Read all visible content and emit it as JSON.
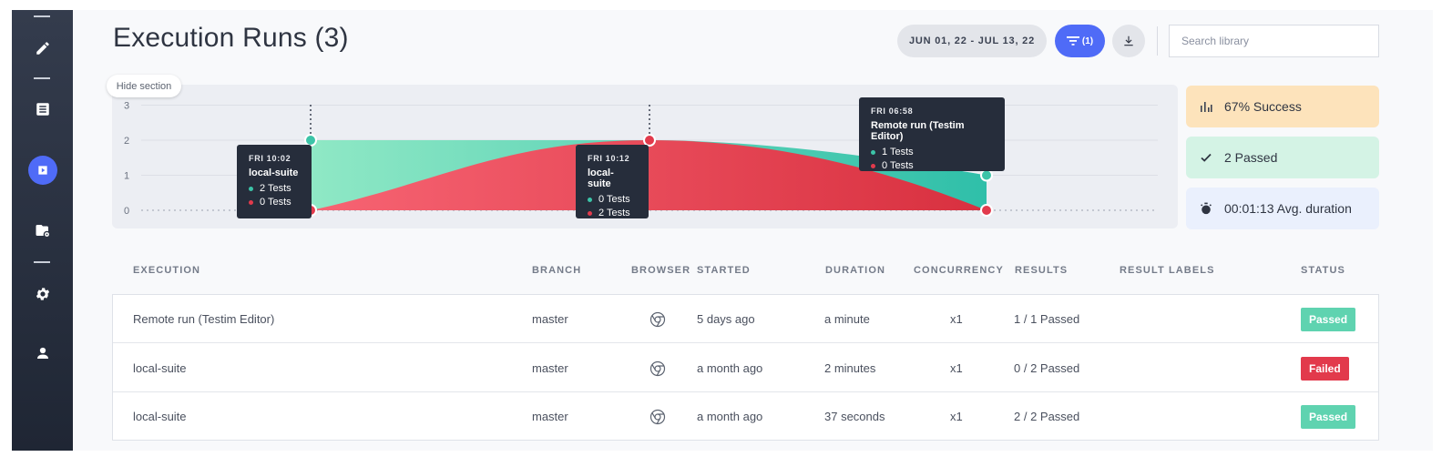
{
  "page": {
    "title": "Execution Runs (3)"
  },
  "header": {
    "date_range": "JUN 01, 22 - JUL 13, 22",
    "filter_count": "(1)",
    "search_placeholder": "Search library"
  },
  "chart": {
    "hide_label": "Hide section",
    "y_ticks": [
      "3",
      "2",
      "1",
      "0"
    ],
    "colors": {
      "passed": "#3cc4a8",
      "failed": "#e23a4c"
    },
    "tooltips": [
      {
        "time": "FRI 10:02",
        "name": "local-suite",
        "passed_text": "2 Tests",
        "failed_text": "0 Tests"
      },
      {
        "time": "FRI 10:12",
        "name": "local-suite",
        "passed_text": "0 Tests",
        "failed_text": "2 Tests"
      },
      {
        "time": "FRI 06:58",
        "name": "Remote run (Testim Editor)",
        "passed_text": "1 Tests",
        "failed_text": "0 Tests"
      }
    ]
  },
  "chart_data": {
    "type": "area",
    "x": [
      "FRI 10:02",
      "FRI 10:12",
      "FRI 06:58"
    ],
    "series": [
      {
        "values": [
          2,
          0,
          1
        ]
      },
      {
        "values": [
          0,
          2,
          0
        ]
      }
    ],
    "ylim": [
      0,
      3
    ],
    "grid": true
  },
  "stats": [
    {
      "icon": "bar-chart-icon",
      "label": "67% Success",
      "bg": "#fde3bb"
    },
    {
      "icon": "check-icon",
      "label": "2 Passed",
      "bg": "#d4f3e5"
    },
    {
      "icon": "stopwatch-icon",
      "label": "00:01:13 Avg. duration",
      "bg": "#eaf0fd"
    }
  ],
  "table": {
    "headers": {
      "execution": "EXECUTION",
      "branch": "BRANCH",
      "browser": "BROWSER",
      "started": "STARTED",
      "duration": "DURATION",
      "concurrency": "CONCURRENCY",
      "results": "RESULTS",
      "result_labels": "RESULT LABELS",
      "status": "STATUS"
    },
    "rows": [
      {
        "execution": "Remote run (Testim Editor)",
        "branch": "master",
        "browser": "chrome-icon",
        "started": "5 days ago",
        "duration": "a minute",
        "concurrency": "x1",
        "results": "1 / 1 Passed",
        "status": "Passed",
        "status_color": "#5fd3b0"
      },
      {
        "execution": "local-suite",
        "branch": "master",
        "browser": "chrome-icon",
        "started": "a month ago",
        "duration": "2 minutes",
        "concurrency": "x1",
        "results": "0 / 2 Passed",
        "status": "Failed",
        "status_color": "#e23a4c"
      },
      {
        "execution": "local-suite",
        "branch": "master",
        "browser": "chrome-icon",
        "started": "a month ago",
        "duration": "37 seconds",
        "concurrency": "x1",
        "results": "2 / 2 Passed",
        "status": "Passed",
        "status_color": "#5fd3b0"
      }
    ]
  }
}
